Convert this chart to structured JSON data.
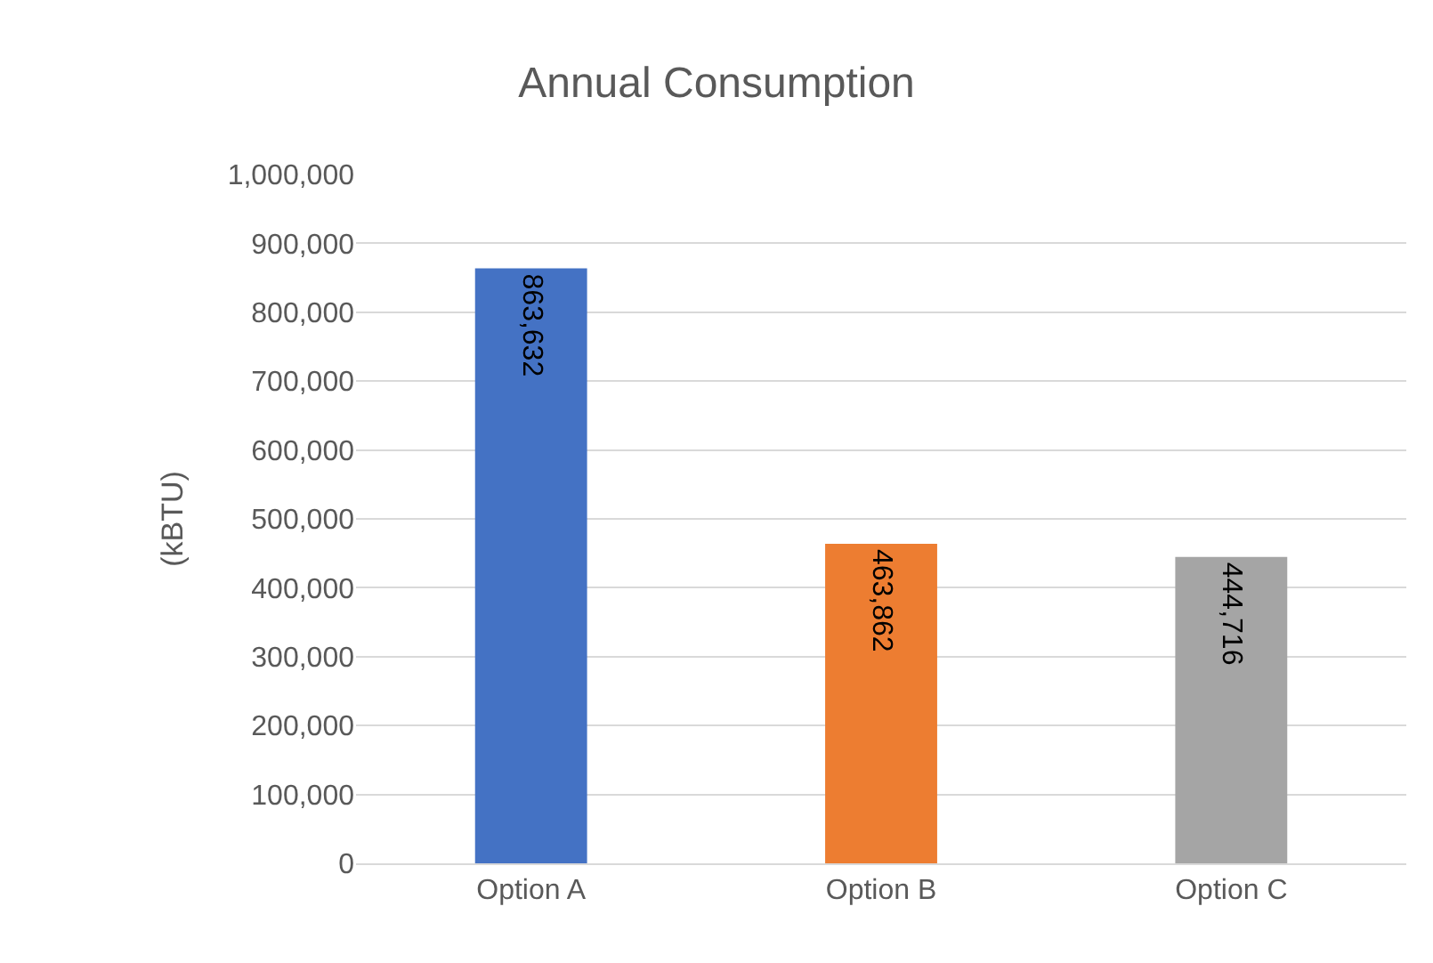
{
  "chart_data": {
    "type": "bar",
    "title": "Annual Consumption",
    "ylabel": "(kBTU)",
    "categories": [
      "Option A",
      "Option B",
      "Option C"
    ],
    "values": [
      863632,
      463862,
      444716
    ],
    "colors": [
      "#4472c4",
      "#ed7d31",
      "#a5a5a5"
    ],
    "ylim": [
      0,
      1000000
    ],
    "yticks": [
      {
        "value": 0,
        "label": "0"
      },
      {
        "value": 100000,
        "label": "100,000"
      },
      {
        "value": 200000,
        "label": "200,000"
      },
      {
        "value": 300000,
        "label": "300,000"
      },
      {
        "value": 400000,
        "label": "400,000"
      },
      {
        "value": 500000,
        "label": "500,000"
      },
      {
        "value": 600000,
        "label": "600,000"
      },
      {
        "value": 700000,
        "label": "700,000"
      },
      {
        "value": 800000,
        "label": "800,000"
      },
      {
        "value": 900000,
        "label": "900,000"
      },
      {
        "value": 1000000,
        "label": "1,000,000"
      }
    ],
    "value_labels": [
      "863,632",
      "463,862",
      "444,716"
    ],
    "grid": "y"
  }
}
